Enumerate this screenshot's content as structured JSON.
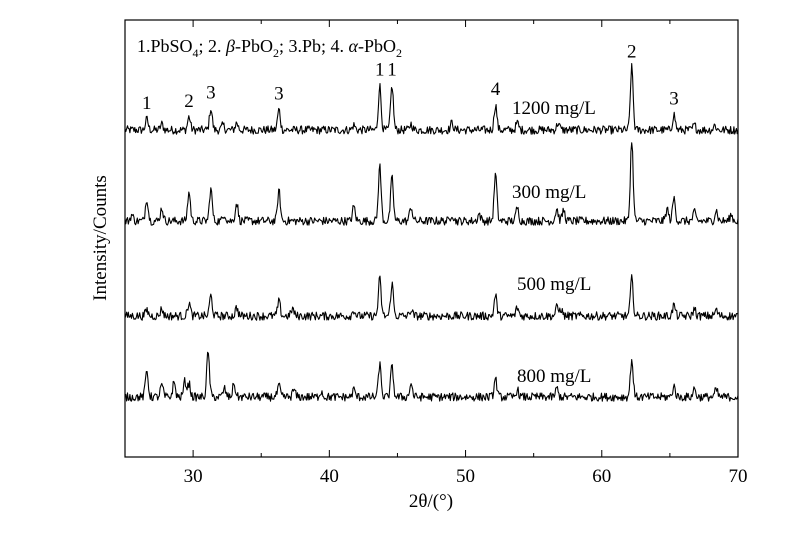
{
  "chart_data": {
    "type": "line",
    "xlabel": "2θ/(°)",
    "ylabel": "Intensity/Counts",
    "xlim": [
      25,
      70
    ],
    "x_ticks": [
      30,
      40,
      50,
      60,
      70
    ],
    "y_ticks_shown": false,
    "legend_text": {
      "n1": "1.PbSO",
      "s1": "4",
      "p1": "; 2. ",
      "beta": "β",
      "p2": "-PbO",
      "s2": "2",
      "p3": "; 3.Pb; 4. ",
      "alpha": "α",
      "p4": "-PbO",
      "s3": "2"
    },
    "phases": [
      {
        "id": "1",
        "name": "PbSO4"
      },
      {
        "id": "2",
        "name": "β-PbO2"
      },
      {
        "id": "3",
        "name": "Pb"
      },
      {
        "id": "4",
        "name": "α-PbO2"
      }
    ],
    "peak_labels": [
      {
        "text": "1",
        "x": 26.6
      },
      {
        "text": "2",
        "x": 29.7
      },
      {
        "text": "3",
        "x": 31.3
      },
      {
        "text": "3",
        "x": 36.3
      },
      {
        "text": "1",
        "x": 43.7
      },
      {
        "text": "1",
        "x": 44.6
      },
      {
        "text": "4",
        "x": 52.2
      },
      {
        "text": "2",
        "x": 62.2
      },
      {
        "text": "3",
        "x": 65.3
      }
    ],
    "series": [
      {
        "name": "1200 mg/L",
        "peaks": [
          {
            "x": 26.6,
            "h": 0.45
          },
          {
            "x": 27.7,
            "h": 0.25
          },
          {
            "x": 29.7,
            "h": 0.55
          },
          {
            "x": 31.3,
            "h": 0.9
          },
          {
            "x": 32.2,
            "h": 0.2
          },
          {
            "x": 33.2,
            "h": 0.3
          },
          {
            "x": 36.3,
            "h": 0.85
          },
          {
            "x": 41.8,
            "h": 0.2
          },
          {
            "x": 43.7,
            "h": 1.85
          },
          {
            "x": 44.6,
            "h": 1.85
          },
          {
            "x": 46.0,
            "h": 0.25
          },
          {
            "x": 49.0,
            "h": 0.3
          },
          {
            "x": 52.2,
            "h": 1.05
          },
          {
            "x": 53.8,
            "h": 0.3
          },
          {
            "x": 56.8,
            "h": 0.3
          },
          {
            "x": 62.2,
            "h": 2.6
          },
          {
            "x": 65.3,
            "h": 0.65
          },
          {
            "x": 66.8,
            "h": 0.2
          },
          {
            "x": 68.3,
            "h": 0.2
          }
        ]
      },
      {
        "name": "300 mg/L",
        "peaks": [
          {
            "x": 25.5,
            "h": 0.25
          },
          {
            "x": 26.6,
            "h": 0.95
          },
          {
            "x": 27.7,
            "h": 0.55
          },
          {
            "x": 29.7,
            "h": 1.2
          },
          {
            "x": 31.3,
            "h": 1.35
          },
          {
            "x": 32.3,
            "h": 0.3
          },
          {
            "x": 33.2,
            "h": 0.75
          },
          {
            "x": 36.3,
            "h": 1.25
          },
          {
            "x": 41.8,
            "h": 0.6
          },
          {
            "x": 43.7,
            "h": 2.3
          },
          {
            "x": 44.6,
            "h": 1.8
          },
          {
            "x": 46.0,
            "h": 0.6
          },
          {
            "x": 49.0,
            "h": 0.3
          },
          {
            "x": 51.0,
            "h": 0.3
          },
          {
            "x": 52.2,
            "h": 1.95
          },
          {
            "x": 53.8,
            "h": 0.55
          },
          {
            "x": 56.7,
            "h": 0.5
          },
          {
            "x": 57.2,
            "h": 0.45
          },
          {
            "x": 62.2,
            "h": 3.35
          },
          {
            "x": 64.8,
            "h": 0.5
          },
          {
            "x": 65.3,
            "h": 0.95
          },
          {
            "x": 66.8,
            "h": 0.35
          },
          {
            "x": 68.4,
            "h": 0.45
          },
          {
            "x": 69.5,
            "h": 0.25
          }
        ]
      },
      {
        "name": "500 mg/L",
        "peaks": [
          {
            "x": 26.6,
            "h": 0.25
          },
          {
            "x": 27.7,
            "h": 0.3
          },
          {
            "x": 29.7,
            "h": 0.55
          },
          {
            "x": 31.3,
            "h": 0.85
          },
          {
            "x": 33.2,
            "h": 0.35
          },
          {
            "x": 36.3,
            "h": 0.6
          },
          {
            "x": 37.3,
            "h": 0.3
          },
          {
            "x": 41.8,
            "h": 0.25
          },
          {
            "x": 43.7,
            "h": 1.55
          },
          {
            "x": 44.6,
            "h": 1.35
          },
          {
            "x": 46.0,
            "h": 0.25
          },
          {
            "x": 52.2,
            "h": 0.85
          },
          {
            "x": 53.8,
            "h": 0.35
          },
          {
            "x": 56.7,
            "h": 0.35
          },
          {
            "x": 57.0,
            "h": 0.3
          },
          {
            "x": 62.2,
            "h": 1.55
          },
          {
            "x": 65.3,
            "h": 0.45
          },
          {
            "x": 66.8,
            "h": 0.3
          },
          {
            "x": 68.4,
            "h": 0.25
          }
        ]
      },
      {
        "name": "800 mg/L",
        "peaks": [
          {
            "x": 26.6,
            "h": 1.1
          },
          {
            "x": 27.7,
            "h": 0.5
          },
          {
            "x": 28.6,
            "h": 0.6
          },
          {
            "x": 29.4,
            "h": 0.65
          },
          {
            "x": 29.7,
            "h": 0.55
          },
          {
            "x": 31.1,
            "h": 1.85
          },
          {
            "x": 32.3,
            "h": 0.35
          },
          {
            "x": 33.0,
            "h": 0.55
          },
          {
            "x": 36.3,
            "h": 0.45
          },
          {
            "x": 37.4,
            "h": 0.3
          },
          {
            "x": 39.4,
            "h": 0.25
          },
          {
            "x": 41.8,
            "h": 0.3
          },
          {
            "x": 43.7,
            "h": 1.35
          },
          {
            "x": 44.6,
            "h": 1.25
          },
          {
            "x": 46.0,
            "h": 0.55
          },
          {
            "x": 52.2,
            "h": 0.75
          },
          {
            "x": 53.8,
            "h": 0.3
          },
          {
            "x": 56.7,
            "h": 0.35
          },
          {
            "x": 62.2,
            "h": 1.55
          },
          {
            "x": 65.3,
            "h": 0.45
          },
          {
            "x": 66.8,
            "h": 0.35
          },
          {
            "x": 68.4,
            "h": 0.3
          }
        ]
      }
    ]
  }
}
